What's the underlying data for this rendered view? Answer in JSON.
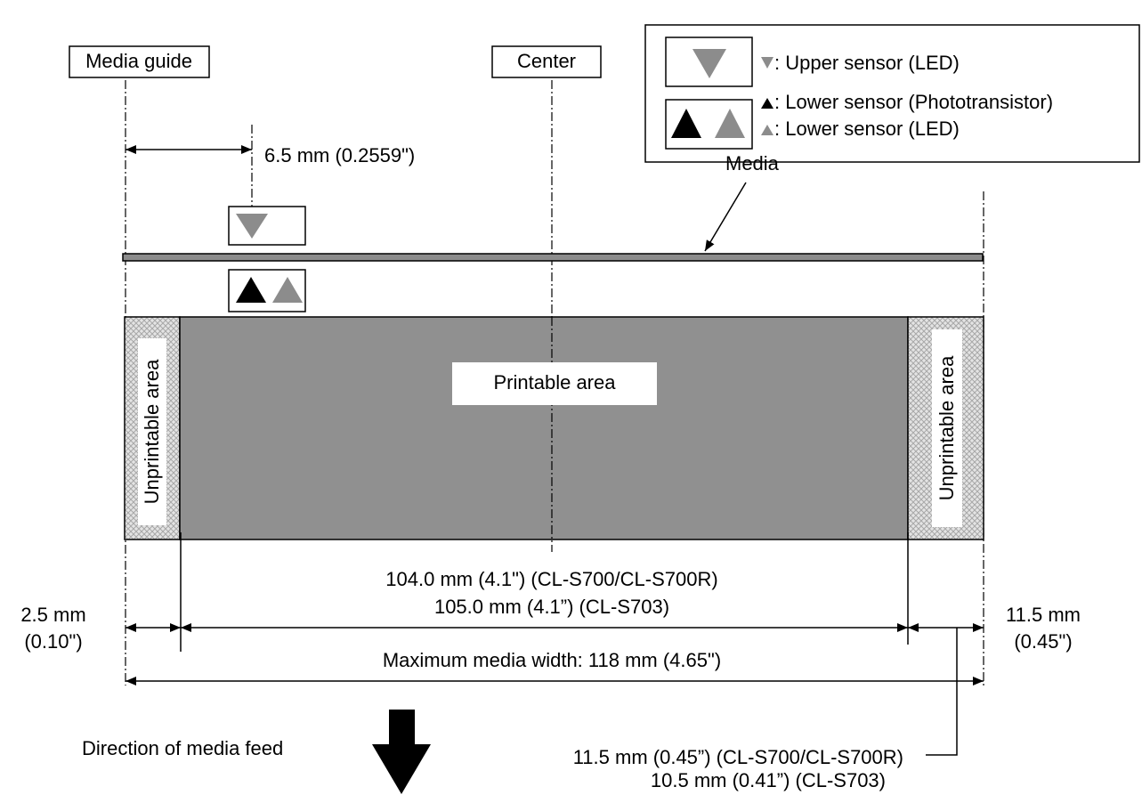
{
  "legend": {
    "upper_sensor": ": Upper sensor (LED)",
    "lower_sensor_phototransistor": ": Lower sensor (Phototransistor)",
    "lower_sensor_led": ": Lower sensor (LED)"
  },
  "labels": {
    "media_guide": "Media guide",
    "center": "Center",
    "media": "Media",
    "printable_area": "Printable area",
    "unprintable_left": "Unprintable area",
    "unprintable_right": "Unprintable area",
    "direction": "Direction of media feed"
  },
  "dimensions": {
    "sensor_offset": "6.5 mm (0.2559\")",
    "printable_width": [
      "104.0 mm (4.1\") (CL-S700/CL-S700R)",
      "105.0 mm (4.1”) (CL-S703)"
    ],
    "left_margin": [
      "2.5 mm",
      "(0.10\")"
    ],
    "right_margin": [
      "11.5 mm",
      "(0.45\")"
    ],
    "max_width": "Maximum media width: 118 mm (4.65\")",
    "right_margin_models": [
      "11.5 mm (0.45”) (CL-S700/CL-S700R)",
      "10.5 mm (0.41”) (CL-S703)"
    ]
  }
}
